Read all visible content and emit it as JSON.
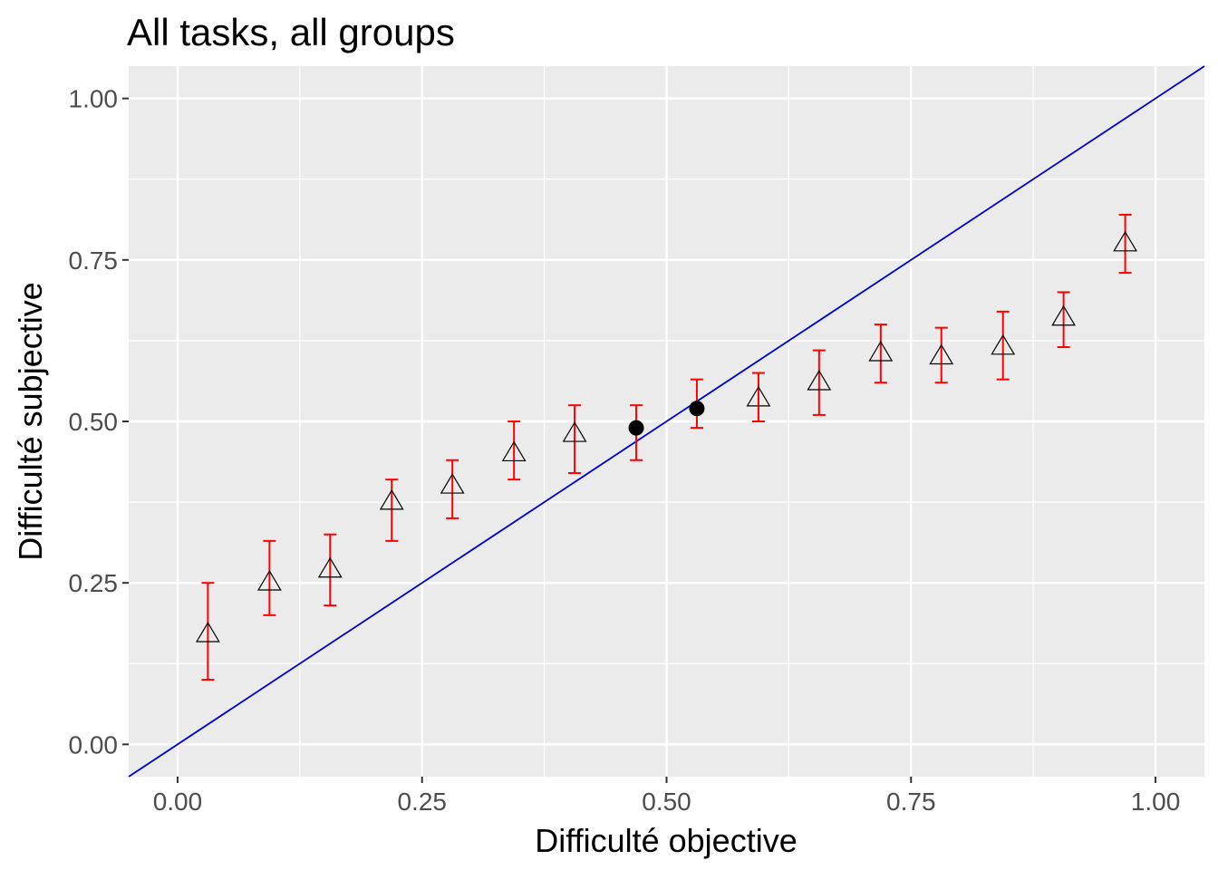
{
  "chart_data": {
    "type": "scatter",
    "title": "All tasks, all groups",
    "xlabel": "Difficulté objective",
    "ylabel": "Difficulté subjective",
    "xlim": [
      -0.05,
      1.05
    ],
    "ylim": [
      -0.05,
      1.05
    ],
    "x_ticks": [
      "0.00",
      "0.25",
      "0.50",
      "0.75",
      "1.00"
    ],
    "y_ticks": [
      "0.00",
      "0.25",
      "0.50",
      "0.75",
      "1.00"
    ],
    "grid": true,
    "reference_line": {
      "type": "identity",
      "slope": 1,
      "intercept": 0,
      "color": "#0000cc"
    },
    "error_bar_color": "#ff0000",
    "series": [
      {
        "marker": "open-triangle",
        "points": [
          {
            "x": 0.031,
            "y": 0.17,
            "ymin": 0.1,
            "ymax": 0.25
          },
          {
            "x": 0.094,
            "y": 0.25,
            "ymin": 0.2,
            "ymax": 0.315
          },
          {
            "x": 0.156,
            "y": 0.27,
            "ymin": 0.215,
            "ymax": 0.325
          },
          {
            "x": 0.219,
            "y": 0.375,
            "ymin": 0.315,
            "ymax": 0.41
          },
          {
            "x": 0.281,
            "y": 0.4,
            "ymin": 0.35,
            "ymax": 0.44
          },
          {
            "x": 0.344,
            "y": 0.45,
            "ymin": 0.41,
            "ymax": 0.5
          },
          {
            "x": 0.406,
            "y": 0.48,
            "ymin": 0.42,
            "ymax": 0.525
          },
          {
            "x": 0.594,
            "y": 0.535,
            "ymin": 0.5,
            "ymax": 0.575
          },
          {
            "x": 0.656,
            "y": 0.56,
            "ymin": 0.51,
            "ymax": 0.61
          },
          {
            "x": 0.719,
            "y": 0.605,
            "ymin": 0.56,
            "ymax": 0.65
          },
          {
            "x": 0.781,
            "y": 0.6,
            "ymin": 0.56,
            "ymax": 0.645
          },
          {
            "x": 0.844,
            "y": 0.615,
            "ymin": 0.565,
            "ymax": 0.67
          },
          {
            "x": 0.906,
            "y": 0.66,
            "ymin": 0.615,
            "ymax": 0.7
          },
          {
            "x": 0.969,
            "y": 0.775,
            "ymin": 0.73,
            "ymax": 0.82
          }
        ]
      },
      {
        "marker": "filled-circle",
        "points": [
          {
            "x": 0.469,
            "y": 0.49,
            "ymin": 0.44,
            "ymax": 0.525
          },
          {
            "x": 0.531,
            "y": 0.52,
            "ymin": 0.49,
            "ymax": 0.565
          }
        ]
      }
    ]
  }
}
